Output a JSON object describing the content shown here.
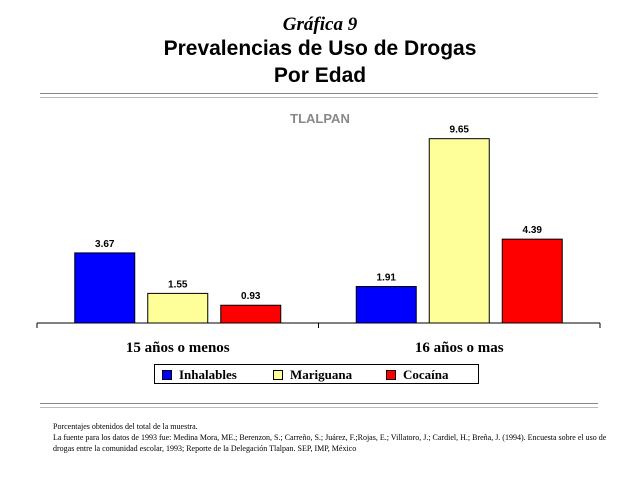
{
  "header": {
    "grafica": "Gráfica 9",
    "title_line1": "Prevalencias de Uso de Drogas",
    "title_line2": "Por Edad"
  },
  "chart_data": {
    "type": "bar",
    "title": "TLALPAN",
    "categories": [
      "15 años o menos",
      "16 años o mas"
    ],
    "series": [
      {
        "name": "Inhalables",
        "values": [
          3.67,
          1.91
        ],
        "color": "#0000ff"
      },
      {
        "name": "Mariguana",
        "values": [
          1.55,
          9.65
        ],
        "color": "#ffff99"
      },
      {
        "name": "Cocaína",
        "values": [
          0.93,
          4.39
        ],
        "color": "#ff0000"
      }
    ],
    "value_labels": [
      [
        "3.67",
        "1.91"
      ],
      [
        "1.55",
        "9.65"
      ],
      [
        "0.93",
        "4.39"
      ]
    ],
    "ylim": [
      0,
      10
    ],
    "grid": false,
    "legend_position": "bottom"
  },
  "notes": {
    "line1": "Porcentajes obtenidos del total de la muestra.",
    "line2": "La fuente para los datos de 1993 fue: Medina Mora, ME.; Berenzon, S.; Carreño, S.; Juárez, F.;Rojas, E.; Villatoro, J.; Cardiel, H.; Breña, J. (1994). Encuesta sobre el uso de drogas entre la comunidad escolar, 1993; Reporte de la Delegación Tlalpan. SEP, IMP, México"
  }
}
